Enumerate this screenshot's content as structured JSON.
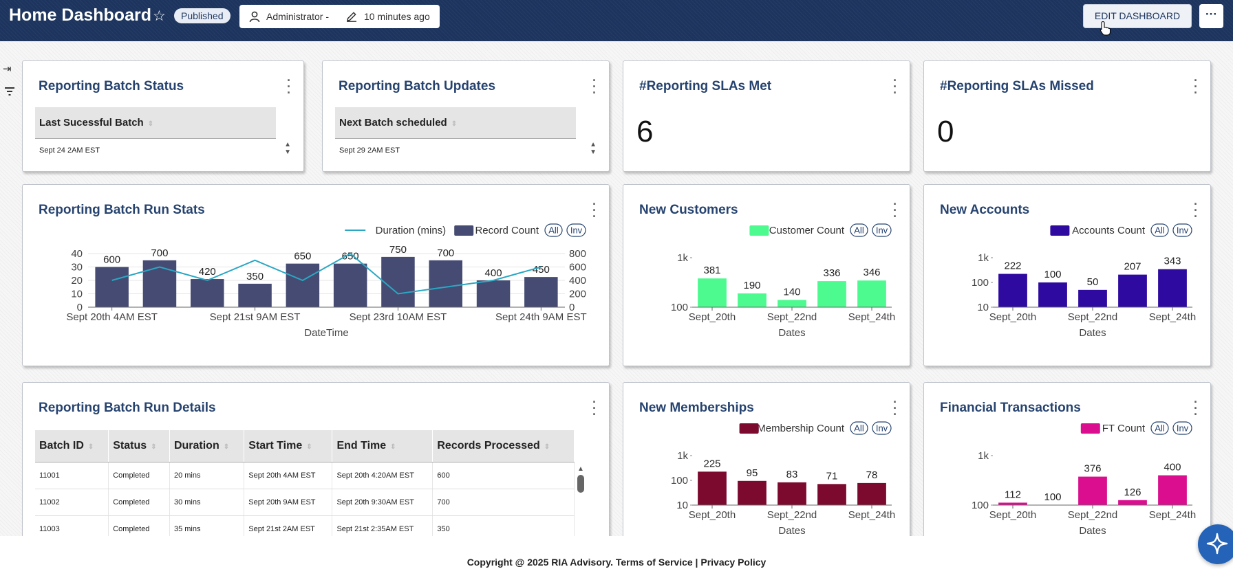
{
  "header": {
    "title": "Home Dashboard",
    "status_badge": "Published",
    "owner": "Administrator -",
    "modified": "10 minutes ago",
    "edit_label": "EDIT DASHBOARD",
    "more_label": "···"
  },
  "sidebar": {
    "collapse_icon": "→|",
    "filter_icon": "filter"
  },
  "cards": {
    "batch_status": {
      "title": "Reporting Batch Status",
      "header": "Last Sucessful Batch",
      "value": "Sept 24 2AM EST"
    },
    "batch_updates": {
      "title": "Reporting Batch Updates",
      "header": "Next Batch scheduled",
      "value": "Sept 29 2AM EST"
    },
    "slas_met": {
      "title": "#Reporting SLAs Met",
      "value": "6"
    },
    "slas_missed": {
      "title": "#Reporting SLAs Missed",
      "value": "0"
    },
    "run_stats": {
      "title": "Reporting Batch Run Stats"
    },
    "new_customers": {
      "title": "New Customers"
    },
    "new_accounts": {
      "title": "New Accounts"
    },
    "run_details": {
      "title": "Reporting Batch Run Details"
    },
    "new_memberships": {
      "title": "New Memberships"
    },
    "financial_transactions": {
      "title": "Financial Transactions"
    }
  },
  "legend_controls": {
    "all": "All",
    "inv": "Inv"
  },
  "details_table": {
    "columns": [
      "Batch ID",
      "Status",
      "Duration",
      "Start Time",
      "End Time",
      "Records Processed"
    ],
    "rows": [
      [
        "11001",
        "Completed",
        "20 mins",
        "Sept 20th 4AM EST",
        "Sept 20th 4:20AM EST",
        "600"
      ],
      [
        "11002",
        "Completed",
        "30 mins",
        "Sept 20th 9AM EST",
        "Sept 20th 9:30AM EST",
        "700"
      ],
      [
        "11003",
        "Completed",
        "35 mins",
        "Sept 21st 2AM EST",
        "Sept 21st 2:35AM EST",
        "350"
      ]
    ]
  },
  "footer": "Copyright @ 2025 RIA Advisory. Terms of Service | Privacy Policy",
  "colors": {
    "header_bg": "#1d355e",
    "title_blue": "#26436f",
    "record_bar": "#454b72",
    "duration_line": "#2aa7c3",
    "customers": "#4dfa8f",
    "accounts": "#2e0aa0",
    "memberships": "#7c0a2f",
    "ft": "#db0e8f"
  },
  "chart_data": [
    {
      "id": "run_stats",
      "type": "bar",
      "xlabel": "DateTime",
      "x_tick_labels": [
        "Sept 20th 4AM EST",
        "Sept 21st 9AM EST",
        "Sept 23rd 10AM EST",
        "Sept 24th 9AM EST"
      ],
      "series": [
        {
          "name": "Record Count",
          "type": "bar",
          "axis": "right",
          "values": [
            600,
            700,
            420,
            350,
            650,
            650,
            750,
            700,
            400,
            450
          ]
        },
        {
          "name": "Duration (mins)",
          "type": "line",
          "axis": "left",
          "values": [
            20,
            30,
            20,
            35,
            20,
            40,
            10,
            15,
            20,
            30
          ]
        }
      ],
      "y_left": {
        "ticks": [
          0,
          10,
          20,
          30,
          40
        ],
        "range": [
          0,
          40
        ]
      },
      "y_right": {
        "ticks": [
          0,
          200,
          400,
          600,
          800
        ],
        "range": [
          0,
          800
        ]
      },
      "legend": "top-right",
      "grid": true
    },
    {
      "id": "new_customers",
      "type": "bar",
      "xlabel": "Dates",
      "x_tick_labels": [
        "Sept_20th",
        "Sept_22nd",
        "Sept_24th"
      ],
      "series": [
        {
          "name": "Customer Count",
          "values": [
            381,
            190,
            140,
            336,
            346
          ]
        }
      ],
      "y_scale": "log",
      "y_ticks": [
        "100",
        "1k"
      ],
      "ylim": [
        100,
        1000
      ],
      "legend": "top-right"
    },
    {
      "id": "new_accounts",
      "type": "bar",
      "xlabel": "Dates",
      "x_tick_labels": [
        "Sept_20th",
        "Sept_22nd",
        "Sept_24th"
      ],
      "series": [
        {
          "name": "Accounts Count",
          "values": [
            222,
            100,
            50,
            207,
            343
          ]
        }
      ],
      "y_scale": "log",
      "y_ticks": [
        "10",
        "100",
        "1k"
      ],
      "ylim": [
        10,
        1000
      ],
      "legend": "top-right"
    },
    {
      "id": "new_memberships",
      "type": "bar",
      "xlabel": "Dates",
      "x_tick_labels": [
        "Sept_20th",
        "Sept_22nd",
        "Sept_24th"
      ],
      "series": [
        {
          "name": "Membership Count",
          "values": [
            225,
            95,
            83,
            71,
            78
          ]
        }
      ],
      "y_scale": "log",
      "y_ticks": [
        "10",
        "100",
        "1k"
      ],
      "ylim": [
        10,
        1000
      ],
      "legend": "top-right"
    },
    {
      "id": "financial_transactions",
      "type": "bar",
      "xlabel": "Dates",
      "x_tick_labels": [
        "Sept_20th",
        "Sept_22nd",
        "Sept_24th"
      ],
      "series": [
        {
          "name": "FT Count",
          "values": [
            112,
            100,
            376,
            126,
            400
          ]
        }
      ],
      "y_scale": "log",
      "y_ticks": [
        "100",
        "1k"
      ],
      "ylim": [
        100,
        1000
      ],
      "legend": "top-right"
    }
  ]
}
